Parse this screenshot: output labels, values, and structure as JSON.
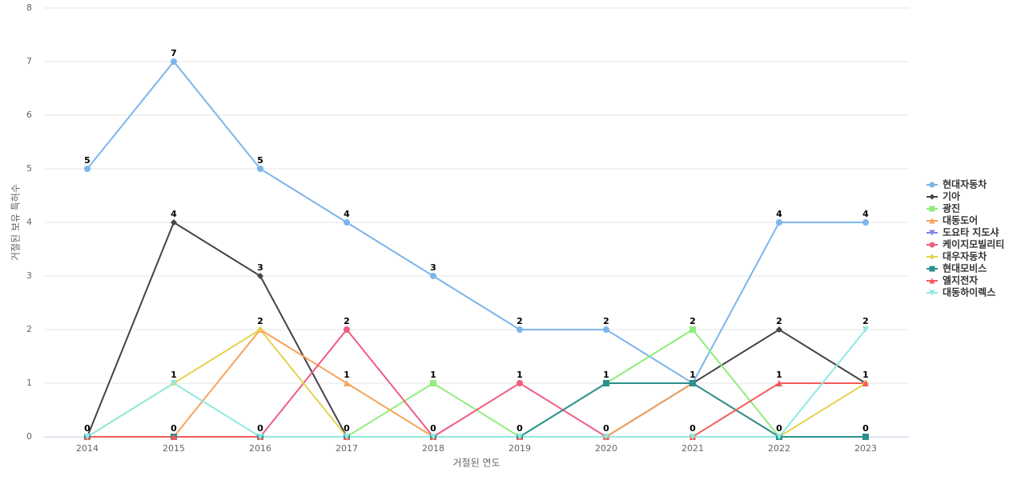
{
  "chart_data": {
    "type": "line",
    "x_label": "거절된 연도",
    "y_label": "거절된 보유 특허수",
    "categories": [
      "2014",
      "2015",
      "2016",
      "2017",
      "2018",
      "2019",
      "2020",
      "2021",
      "2022",
      "2023"
    ],
    "ylim": [
      0,
      8
    ],
    "yticks": [
      0,
      1,
      2,
      3,
      4,
      5,
      6,
      7,
      8
    ],
    "grid": true,
    "legend": "right",
    "series": [
      {
        "name": "현대자동차",
        "color": "#7cb5ec",
        "marker": "circle",
        "values": [
          5,
          7,
          5,
          4,
          3,
          2,
          2,
          1,
          4,
          4
        ]
      },
      {
        "name": "기아",
        "color": "#434348",
        "marker": "diamond",
        "values": [
          0,
          4,
          3,
          0,
          0,
          0,
          0,
          1,
          2,
          1
        ]
      },
      {
        "name": "광진",
        "color": "#90ed7d",
        "marker": "square",
        "values": [
          0,
          0,
          0,
          0,
          1,
          0,
          1,
          2,
          0,
          0
        ]
      },
      {
        "name": "대동도어",
        "color": "#f7a35c",
        "marker": "triangle",
        "values": [
          0,
          0,
          2,
          1,
          0,
          0,
          0,
          1,
          0,
          0
        ]
      },
      {
        "name": "도요타 지도샤",
        "color": "#8085e9",
        "marker": "triangle-down",
        "values": [
          0,
          0,
          0,
          0,
          0,
          0,
          0,
          0,
          0,
          0
        ]
      },
      {
        "name": "케이지모빌리티",
        "color": "#f15c80",
        "marker": "circle",
        "values": [
          0,
          0,
          0,
          2,
          0,
          1,
          0,
          0,
          0,
          0
        ]
      },
      {
        "name": "대우자동차",
        "color": "#e4d354",
        "marker": "diamond",
        "values": [
          0,
          1,
          2,
          0,
          0,
          0,
          0,
          0,
          0,
          1
        ]
      },
      {
        "name": "현대모비스",
        "color": "#2b908f",
        "marker": "square",
        "values": [
          0,
          0,
          0,
          0,
          0,
          0,
          1,
          1,
          0,
          0
        ]
      },
      {
        "name": "엘지전자",
        "color": "#f45b5b",
        "marker": "triangle",
        "values": [
          0,
          0,
          0,
          0,
          0,
          0,
          0,
          0,
          1,
          1
        ]
      },
      {
        "name": "대동하이렉스",
        "color": "#91e8e1",
        "marker": "triangle-down",
        "values": [
          0,
          1,
          0,
          0,
          0,
          0,
          0,
          0,
          0,
          2
        ]
      }
    ]
  }
}
